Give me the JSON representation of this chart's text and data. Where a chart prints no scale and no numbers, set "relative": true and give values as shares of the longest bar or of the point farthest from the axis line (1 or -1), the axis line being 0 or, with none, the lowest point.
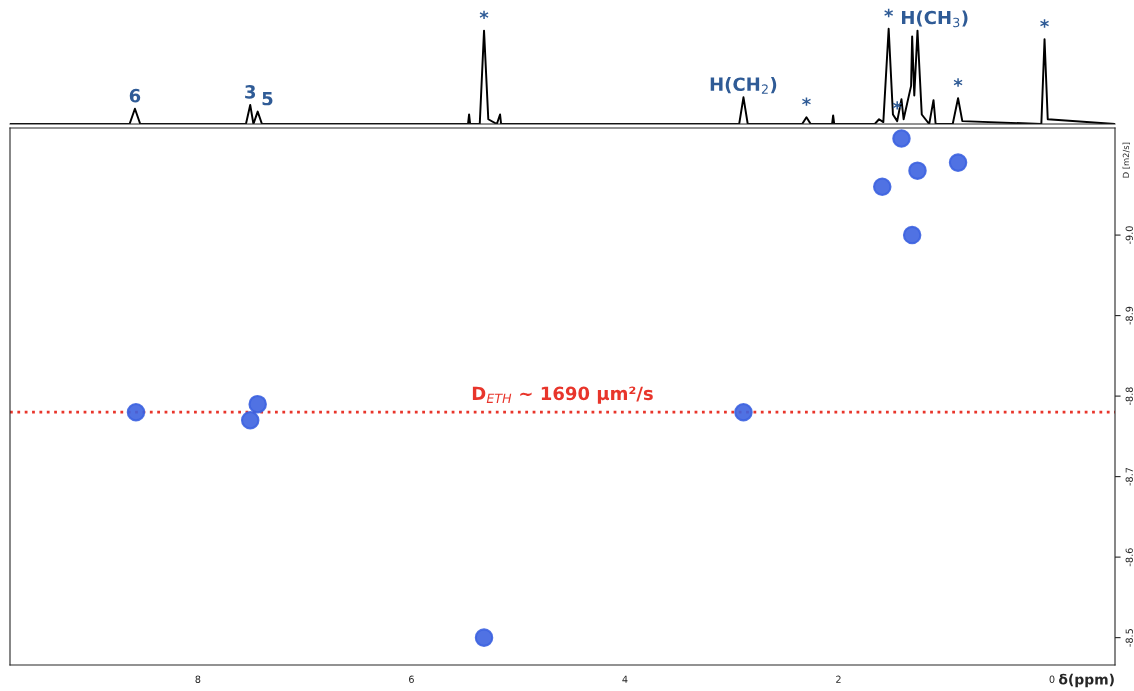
{
  "chart_data": [
    {
      "type": "line",
      "relative": true,
      "tick_labels": false,
      "grid": false,
      "legend": false,
      "marker": "none",
      "line_style": "solid",
      "xlim": [
        9.76,
        -0.59
      ],
      "series": [
        {
          "color": "#000000",
          "x": [
            9.76,
            8.64,
            8.59,
            8.54,
            7.55,
            7.51,
            7.48,
            7.44,
            7.4,
            5.47,
            5.46,
            5.45,
            5.36,
            5.32,
            5.28,
            5.2,
            5.17,
            5.16,
            2.93,
            2.89,
            2.85,
            2.34,
            2.3,
            2.26,
            2.06,
            2.05,
            2.04,
            1.66,
            1.62,
            1.58,
            1.53,
            1.49,
            1.45,
            1.41,
            1.39,
            1.32,
            1.31,
            1.29,
            1.26,
            1.22,
            1.15,
            1.11,
            1.09,
            0.93,
            0.88,
            0.84,
            0.1,
            0.07,
            0.04,
            -0.59
          ],
          "values": [
            0,
            0,
            0.16,
            0,
            0,
            0.2,
            0,
            0.13,
            0,
            0,
            0.1,
            0,
            0,
            0.98,
            0.05,
            0,
            0.1,
            0,
            0,
            0.28,
            0,
            0,
            0.07,
            0,
            0,
            0.09,
            0,
            0,
            0.05,
            0.02,
            1.0,
            0.1,
            0.03,
            0.26,
            0.05,
            0.4,
            0.92,
            0.3,
            0.98,
            0.1,
            0,
            0.25,
            0,
            0,
            0.27,
            0.03,
            0,
            0.89,
            0.05,
            0
          ]
        }
      ],
      "annotations": [
        {
          "text": "6",
          "x": 8.59,
          "y": 0.16
        },
        {
          "text": "3",
          "x": 7.51,
          "y": 0.2
        },
        {
          "text": "5",
          "x": 7.44,
          "y": 0.13
        },
        {
          "text": "*",
          "x": 5.32,
          "y": 0.98
        },
        {
          "text": "H(CH$_{2}$)",
          "x": 2.89,
          "y": 0.28
        },
        {
          "text": "*",
          "x": 2.3,
          "y": 0.07
        },
        {
          "text": "*",
          "x": 1.53,
          "y": 1.0
        },
        {
          "text": "*",
          "x": 1.45,
          "y": 0.03
        },
        {
          "text": "H(CH$_{3}$)",
          "x": 1.26,
          "y": 0.98
        },
        {
          "text": "*",
          "x": 0.88,
          "y": 0.27
        },
        {
          "text": "*",
          "x": 0.07,
          "y": 0.89
        }
      ]
    },
    {
      "type": "scatter",
      "xlabel": "δ(ppm)",
      "ylabel": "D [m2/s]",
      "grid": false,
      "legend": false,
      "marker": "circle",
      "xlim": [
        9.76,
        -0.59
      ],
      "xticks": [
        8,
        6,
        4,
        2,
        0
      ],
      "ylim": [
        -8.466,
        -9.133
      ],
      "yticks": [
        {
          "value": -9.0,
          "label": "-9.0"
        },
        {
          "value": -8.9,
          "label": "-8.9"
        },
        {
          "value": -8.8,
          "label": "-8.8"
        },
        {
          "value": -8.7,
          "label": "-8.7"
        },
        {
          "value": -8.6,
          "label": "-8.6"
        },
        {
          "value": -8.5,
          "label": "-8.5"
        }
      ],
      "series": [
        {
          "color": "#3d63e0",
          "x": [
            8.58,
            7.51,
            7.44,
            2.89,
            5.32,
            1.59,
            1.41,
            1.26,
            1.31,
            0.88
          ],
          "values": [
            -8.78,
            -8.77,
            -8.79,
            -8.78,
            -8.5,
            -9.06,
            -9.12,
            -9.08,
            -9.0,
            -9.09
          ]
        }
      ],
      "ref_lines": [
        {
          "axis": "y",
          "value": -8.78,
          "label": "D$_{ETH}$ ~ 1690 µm²/s",
          "color": "#e8352b",
          "line_style": "dotted"
        }
      ]
    }
  ]
}
